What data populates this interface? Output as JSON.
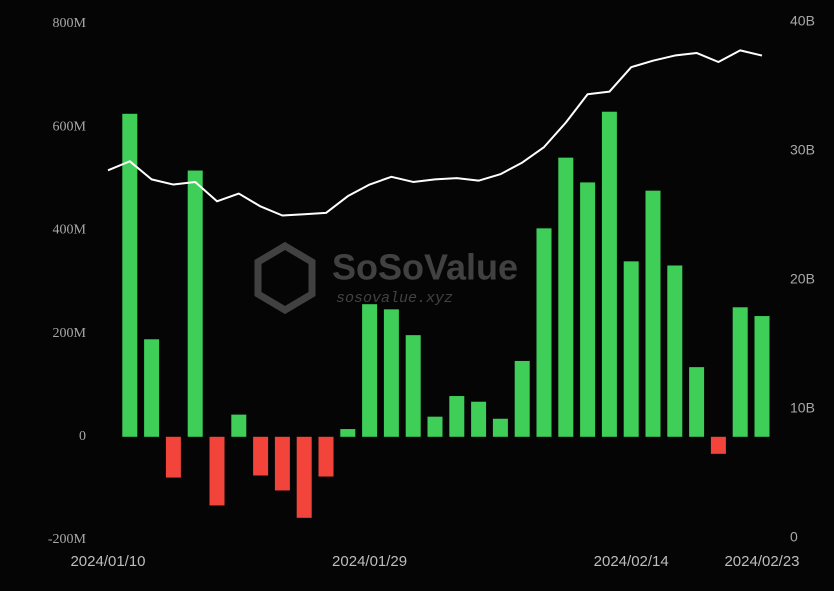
{
  "chart_data": {
    "type": "bar_line",
    "watermark": "SoSoValue",
    "watermark_url": "sosovalue.xyz",
    "categories": [
      "2024/01/10",
      null,
      null,
      null,
      null,
      null,
      null,
      null,
      null,
      null,
      null,
      null,
      "2024/01/29",
      null,
      null,
      null,
      null,
      null,
      null,
      null,
      null,
      null,
      null,
      null,
      "2024/02/14",
      null,
      null,
      null,
      null,
      null,
      "2024/02/23"
    ],
    "series": [
      {
        "type": "bar",
        "positive_color": "#3fce58",
        "negative_color": "#f2443a",
        "values": [
          null,
          626000000,
          189000000,
          -79000000,
          516000000,
          -133000000,
          43000000,
          -75000000,
          -104000000,
          -157000000,
          -77000000,
          15000000,
          257000000,
          247000000,
          197000000,
          39000000,
          79000000,
          68000000,
          35000000,
          147000000,
          404000000,
          541000000,
          493000000,
          630000000,
          340000000,
          477000000,
          332000000,
          135000000,
          -33000000,
          251000000,
          234000000
        ]
      },
      {
        "type": "line",
        "axis": "y2",
        "color": "#ffffff",
        "values": [
          28500000000,
          29200000000,
          27800000000,
          27400000000,
          27600000000,
          26100000000,
          26700000000,
          25700000000,
          25000000000,
          25100000000,
          25200000000,
          26500000000,
          27400000000,
          28000000000,
          27600000000,
          27800000000,
          27900000000,
          27700000000,
          28200000000,
          29100000000,
          30300000000,
          32200000000,
          34400000000,
          34600000000,
          36500000000,
          37000000000,
          37400000000,
          37600000000,
          36900000000,
          37800000000,
          37400000000
        ]
      }
    ],
    "ylim": [
      -200000000,
      800000000
    ],
    "yticks": [
      {
        "value": -200000000,
        "label": "-200M"
      },
      0,
      {
        "value": 200000000,
        "label": "200M"
      },
      {
        "value": 400000000,
        "label": "400M"
      },
      {
        "value": 600000000,
        "label": "600M"
      },
      {
        "value": 800000000,
        "label": "800M"
      }
    ],
    "y2lim": [
      0,
      40000000000
    ],
    "y2ticks": [
      0,
      {
        "value": 10000000000,
        "label": "10B"
      },
      {
        "value": 20000000000,
        "label": "20B"
      },
      {
        "value": 30000000000,
        "label": "30B"
      },
      {
        "value": 40000000000,
        "label": "40B"
      }
    ],
    "grid": false
  }
}
